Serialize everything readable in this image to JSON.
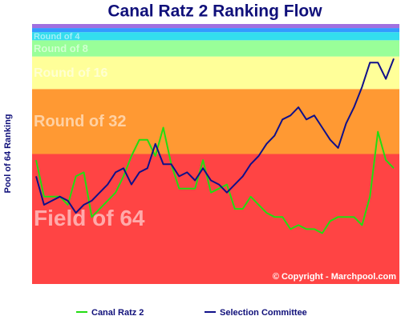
{
  "chart_data": {
    "type": "line",
    "title": "Canal Ratz 2 Ranking Flow",
    "ylabel": "Pool of 64 Ranking",
    "copyright": "© Copyright - Marchpool.com",
    "ylim": [
      64.5,
      0.5
    ],
    "bands": [
      {
        "label": "Field of 64",
        "from": 32.5,
        "to": 64.5,
        "color": "#ff4444"
      },
      {
        "label": "Round of 32",
        "from": 16.5,
        "to": 32.5,
        "color": "#ff9933"
      },
      {
        "label": "Round of 16",
        "from": 8.5,
        "to": 16.5,
        "color": "#ffff99"
      },
      {
        "label": "Round of 8",
        "from": 4.5,
        "to": 8.5,
        "color": "#99ff99"
      },
      {
        "label": "Round of 4",
        "from": 2.5,
        "to": 4.5,
        "color": "#33ddee"
      },
      {
        "from": 1.5,
        "to": 2.5,
        "color": "#3399ff"
      },
      {
        "from": 0.5,
        "to": 1.5,
        "color": "#a070e0"
      }
    ],
    "series": [
      {
        "name": "Canal Ratz 2",
        "color": "#22dd11",
        "values": [
          34,
          43,
          43,
          43,
          45,
          38,
          37,
          48,
          46,
          44,
          42,
          38,
          33,
          29,
          29,
          33,
          26,
          35,
          41,
          41,
          41,
          34,
          42,
          41,
          40,
          46,
          46,
          43,
          45,
          47,
          48,
          48,
          51,
          50,
          51,
          51,
          52,
          49,
          48,
          48,
          48,
          50,
          43,
          27,
          34,
          36
        ]
      },
      {
        "name": "Selection Committee",
        "color": "#10108a",
        "values": [
          38,
          45,
          44,
          43,
          44,
          47,
          45,
          44,
          42,
          40,
          37,
          36,
          40,
          37,
          36,
          30,
          35,
          35,
          38,
          37,
          39,
          36,
          39,
          40,
          42,
          40,
          38,
          35,
          33,
          30,
          28,
          24,
          23,
          21,
          24,
          23,
          26,
          29,
          31,
          25,
          21,
          16,
          10,
          10,
          14,
          9
        ]
      }
    ]
  }
}
